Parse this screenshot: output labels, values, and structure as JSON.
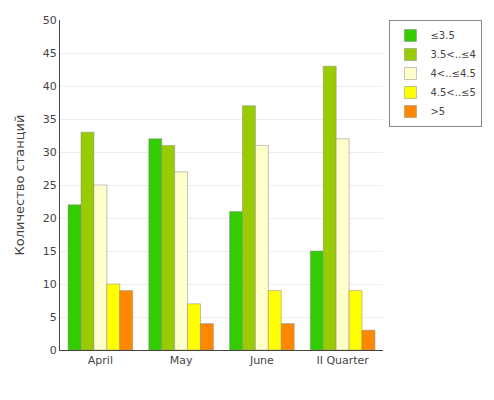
{
  "chart_data": {
    "type": "bar",
    "categories": [
      "April",
      "May",
      "June",
      "II Quarter"
    ],
    "series": [
      {
        "name": "≤3.5",
        "values": [
          22,
          32,
          21,
          15
        ],
        "color": "#33cc00"
      },
      {
        "name": "3.5<..≤4",
        "values": [
          33,
          31,
          37,
          43
        ],
        "color": "#99cc00"
      },
      {
        "name": "4<..≤4.5",
        "values": [
          25,
          27,
          31,
          32
        ],
        "color": "#ffffcc"
      },
      {
        "name": "4.5<..≤5",
        "values": [
          10,
          7,
          9,
          9
        ],
        "color": "#ffff00"
      },
      {
        "name": ">5",
        "values": [
          9,
          4,
          4,
          3
        ],
        "color": "#ff8800"
      }
    ],
    "ylabel": "Количество станций",
    "ylim": [
      0,
      50
    ],
    "yticks": [
      0,
      5,
      10,
      15,
      20,
      25,
      30,
      35,
      40,
      45,
      50
    ],
    "grid": true,
    "legend": "upper right"
  }
}
